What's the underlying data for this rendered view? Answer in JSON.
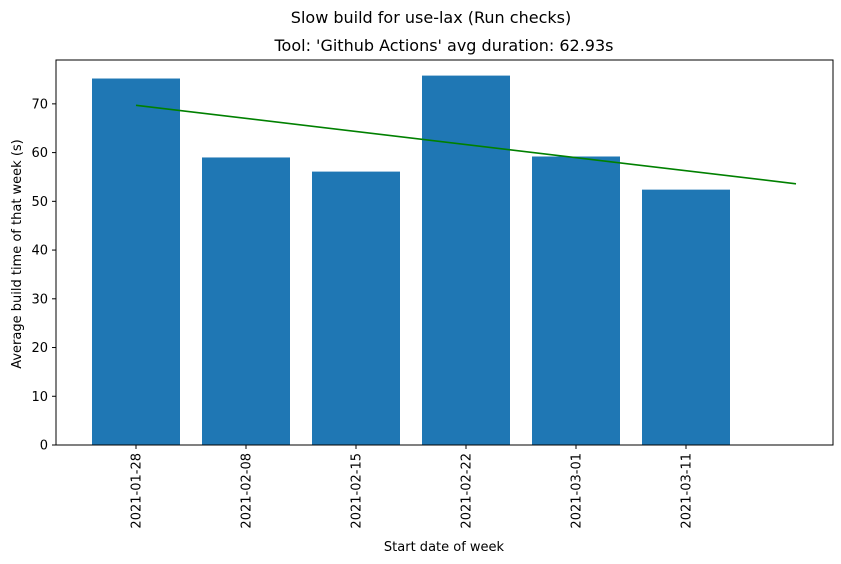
{
  "chart_data": {
    "type": "bar",
    "suptitle": "Slow build for use-lax (Run checks)",
    "title": "Tool: 'Github Actions' avg duration: 62.93s",
    "xlabel": "Start date of week",
    "ylabel": "Average build time of that week (s)",
    "categories": [
      "2021-01-28",
      "2021-02-08",
      "2021-02-15",
      "2021-02-22",
      "2021-03-01",
      "2021-03-11"
    ],
    "values": [
      75.2,
      59.0,
      56.1,
      75.8,
      59.2,
      52.4
    ],
    "bar_color": "#1f77b4",
    "ylim": [
      0,
      79
    ],
    "yticks": [
      0,
      10,
      20,
      30,
      40,
      50,
      60,
      70
    ],
    "trend_line": {
      "color": "#008000",
      "start": {
        "x_index": 0,
        "y": 69.7
      },
      "end": {
        "x_index": 6,
        "y": 53.6
      }
    },
    "grid": false,
    "legend": "none"
  }
}
